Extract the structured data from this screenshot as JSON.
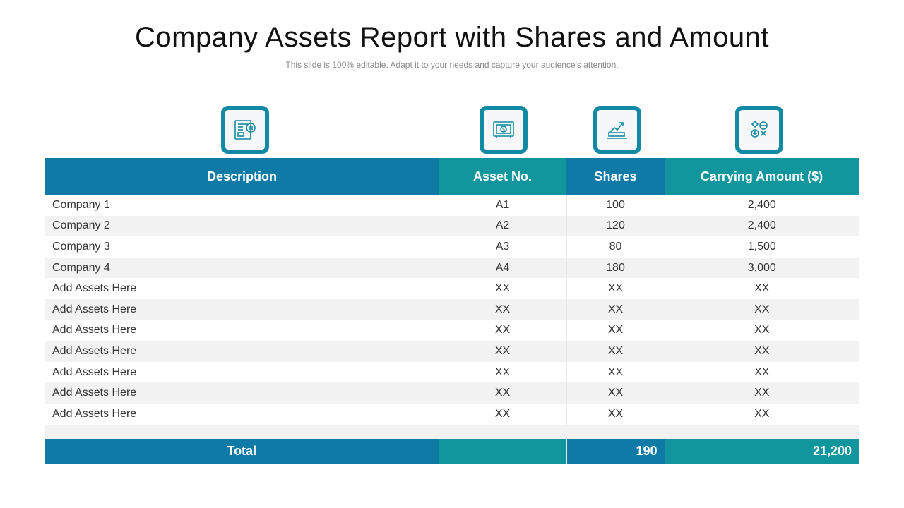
{
  "title": "Company Assets Report with Shares and Amount",
  "subtitle": "This slide is 100% editable. Adapt it to your needs and capture your audience's attention.",
  "icons": [
    "newspaper-icon",
    "money-safe-icon",
    "growth-chart-icon",
    "math-symbols-icon"
  ],
  "colors": {
    "blue": "#0f7aa6",
    "teal": "#11969e",
    "icon_border": "#138aa3"
  },
  "table": {
    "headers": [
      "Description",
      "Asset No.",
      "Shares",
      "Carrying Amount ($)"
    ],
    "rows": [
      [
        "Company 1",
        "A1",
        "100",
        "2,400"
      ],
      [
        "Company 2",
        "A2",
        "120",
        "2,400"
      ],
      [
        "Company 3",
        "A3",
        "80",
        "1,500"
      ],
      [
        "Company 4",
        "A4",
        "180",
        "3,000"
      ],
      [
        "Add Assets Here",
        "XX",
        "XX",
        "XX"
      ],
      [
        "Add Assets Here",
        "XX",
        "XX",
        "XX"
      ],
      [
        "Add Assets Here",
        "XX",
        "XX",
        "XX"
      ],
      [
        "Add Assets Here",
        "XX",
        "XX",
        "XX"
      ],
      [
        "Add Assets Here",
        "XX",
        "XX",
        "XX"
      ],
      [
        "Add Assets Here",
        "XX",
        "XX",
        "XX"
      ],
      [
        "Add Assets Here",
        "XX",
        "XX",
        "XX"
      ]
    ],
    "total": {
      "label": "Total",
      "asset_no": "",
      "shares": "190",
      "amount": "21,200"
    }
  }
}
